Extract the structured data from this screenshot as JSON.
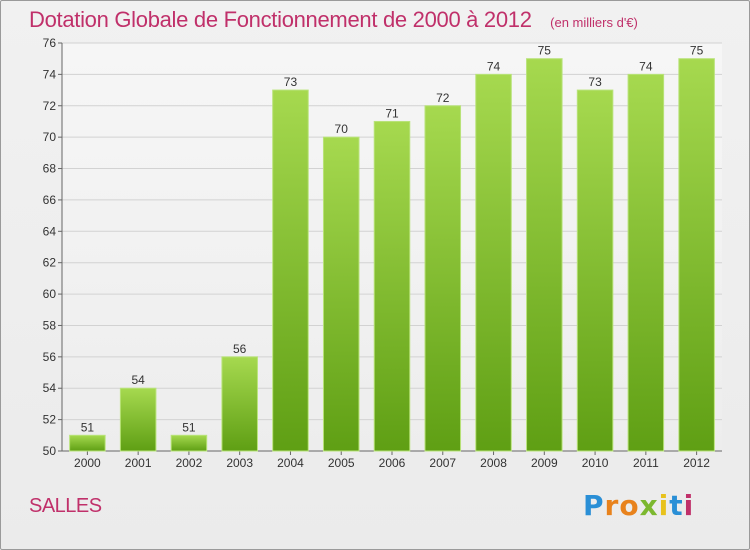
{
  "chart_data": {
    "type": "bar",
    "title": "Dotation Globale de Fonctionnement de 2000 à 2012",
    "subtitle": "(en milliers d'€)",
    "categories": [
      "2000",
      "2001",
      "2002",
      "2003",
      "2004",
      "2005",
      "2006",
      "2007",
      "2008",
      "2009",
      "2010",
      "2011",
      "2012"
    ],
    "values": [
      51,
      54,
      51,
      56,
      73,
      70,
      71,
      72,
      74,
      75,
      73,
      74,
      75
    ],
    "ylim": [
      50,
      76
    ],
    "yticks": [
      50,
      52,
      54,
      56,
      58,
      60,
      62,
      64,
      66,
      68,
      70,
      72,
      74,
      76
    ],
    "xlabel": "",
    "ylabel": "",
    "grid": true,
    "colors": {
      "bar_top": "#a6d94f",
      "bar_bottom": "#5f9f14",
      "title": "#c0306a"
    }
  },
  "footer": {
    "commune": "SALLES",
    "brand": "Proxiti"
  }
}
